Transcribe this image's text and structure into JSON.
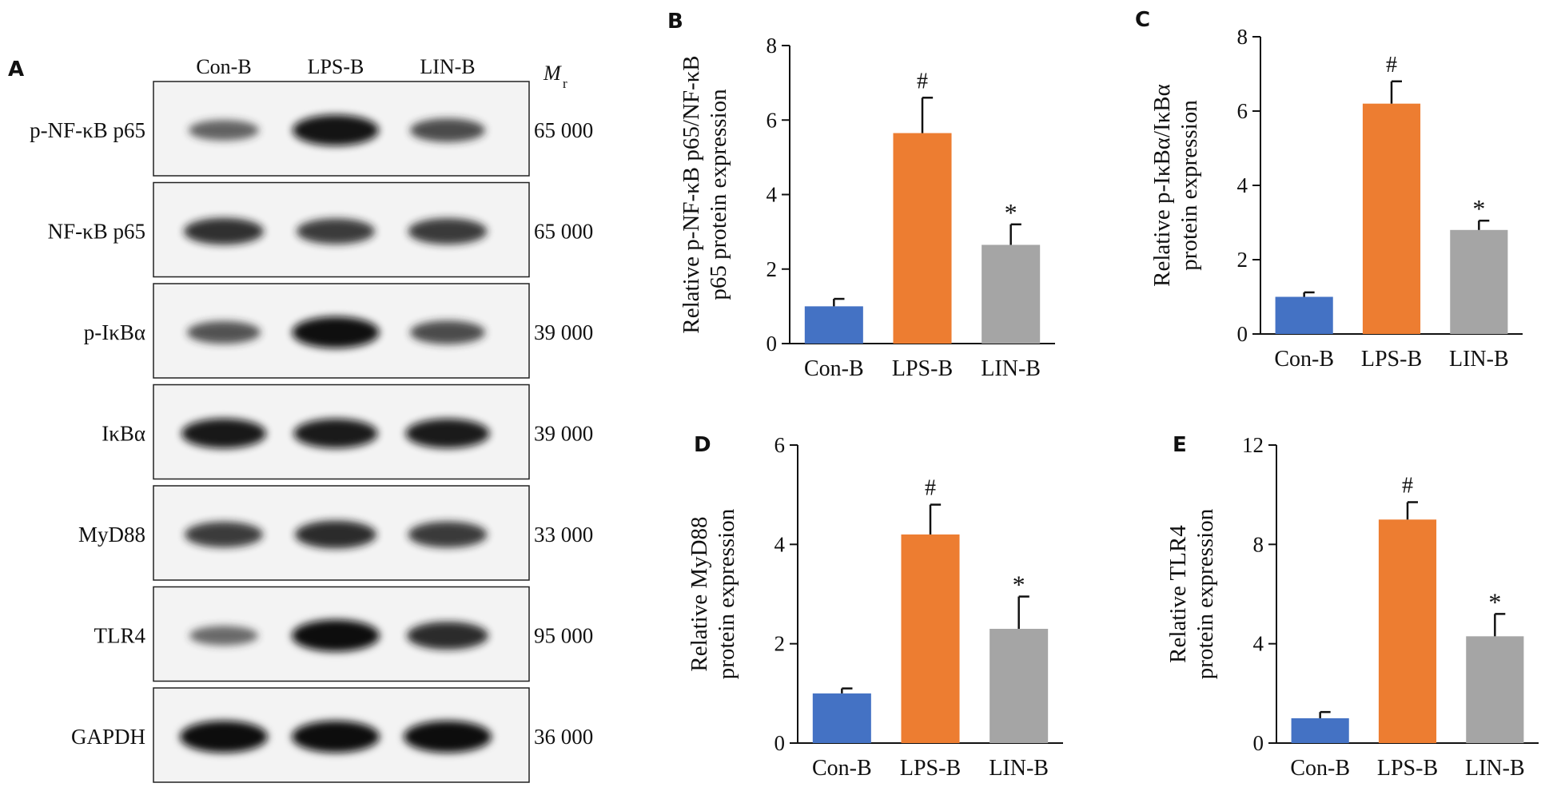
{
  "panel_letters": [
    "A",
    "B",
    "C",
    "D",
    "E"
  ],
  "blot": {
    "lanes": [
      "Con-B",
      "LPS-B",
      "LIN-B"
    ],
    "mr_label": "M",
    "mr_sub": "r",
    "rows": [
      {
        "label": "p-NF-κB p65",
        "mr": "65 000",
        "intensities": [
          0.45,
          0.95,
          0.6
        ]
      },
      {
        "label": "NF-κB p65",
        "mr": "65 000",
        "intensities": [
          0.75,
          0.7,
          0.72
        ]
      },
      {
        "label": "p-IκBα",
        "mr": "39 000",
        "intensities": [
          0.55,
          0.98,
          0.6
        ]
      },
      {
        "label": "IκBα",
        "mr": "39 000",
        "intensities": [
          0.9,
          0.88,
          0.88
        ]
      },
      {
        "label": "MyD88",
        "mr": "33 000",
        "intensities": [
          0.7,
          0.8,
          0.72
        ]
      },
      {
        "label": "TLR4",
        "mr": "95 000",
        "intensities": [
          0.4,
          1.0,
          0.8
        ]
      },
      {
        "label": "GAPDH",
        "mr": "36 000",
        "intensities": [
          1.0,
          1.0,
          1.0
        ]
      }
    ]
  },
  "chart_data": [
    {
      "panel": "B",
      "type": "bar",
      "categories": [
        "Con-B",
        "LPS-B",
        "LIN-B"
      ],
      "values": [
        1.0,
        5.65,
        2.65
      ],
      "errors": [
        0.2,
        0.95,
        0.55
      ],
      "annotations": [
        "",
        "#",
        "*"
      ],
      "ylabel_lines": [
        "Relative p-NF-κB p65/NF-κB",
        "p65 protein expression"
      ],
      "ylim": [
        0,
        8
      ],
      "yticks": [
        0,
        2,
        4,
        6,
        8
      ],
      "colors": [
        "#4472C4",
        "#ED7D31",
        "#A5A5A5"
      ]
    },
    {
      "panel": "C",
      "type": "bar",
      "categories": [
        "Con-B",
        "LPS-B",
        "LIN-B"
      ],
      "values": [
        1.0,
        6.2,
        2.8
      ],
      "errors": [
        0.12,
        0.6,
        0.25
      ],
      "annotations": [
        "",
        "#",
        "*"
      ],
      "ylabel_lines": [
        "Relative p-IκBα/IκBα",
        "protein expression"
      ],
      "ylim": [
        0,
        8
      ],
      "yticks": [
        0,
        2,
        4,
        6,
        8
      ],
      "colors": [
        "#4472C4",
        "#ED7D31",
        "#A5A5A5"
      ]
    },
    {
      "panel": "D",
      "type": "bar",
      "categories": [
        "Con-B",
        "LPS-B",
        "LIN-B"
      ],
      "values": [
        1.0,
        4.2,
        2.3
      ],
      "errors": [
        0.1,
        0.6,
        0.65
      ],
      "annotations": [
        "",
        "#",
        "*"
      ],
      "ylabel_lines": [
        "Relative MyD88",
        "protein expression"
      ],
      "ylim": [
        0,
        6
      ],
      "yticks": [
        0,
        2,
        4,
        6
      ],
      "colors": [
        "#4472C4",
        "#ED7D31",
        "#A5A5A5"
      ]
    },
    {
      "panel": "E",
      "type": "bar",
      "categories": [
        "Con-B",
        "LPS-B",
        "LIN-B"
      ],
      "values": [
        1.0,
        9.0,
        4.3
      ],
      "errors": [
        0.25,
        0.7,
        0.9
      ],
      "annotations": [
        "",
        "#",
        "*"
      ],
      "ylabel_lines": [
        "Relative TLR4",
        "protein expression"
      ],
      "ylim": [
        0,
        12
      ],
      "yticks": [
        0,
        4,
        8,
        12
      ],
      "colors": [
        "#4472C4",
        "#ED7D31",
        "#A5A5A5"
      ]
    }
  ]
}
